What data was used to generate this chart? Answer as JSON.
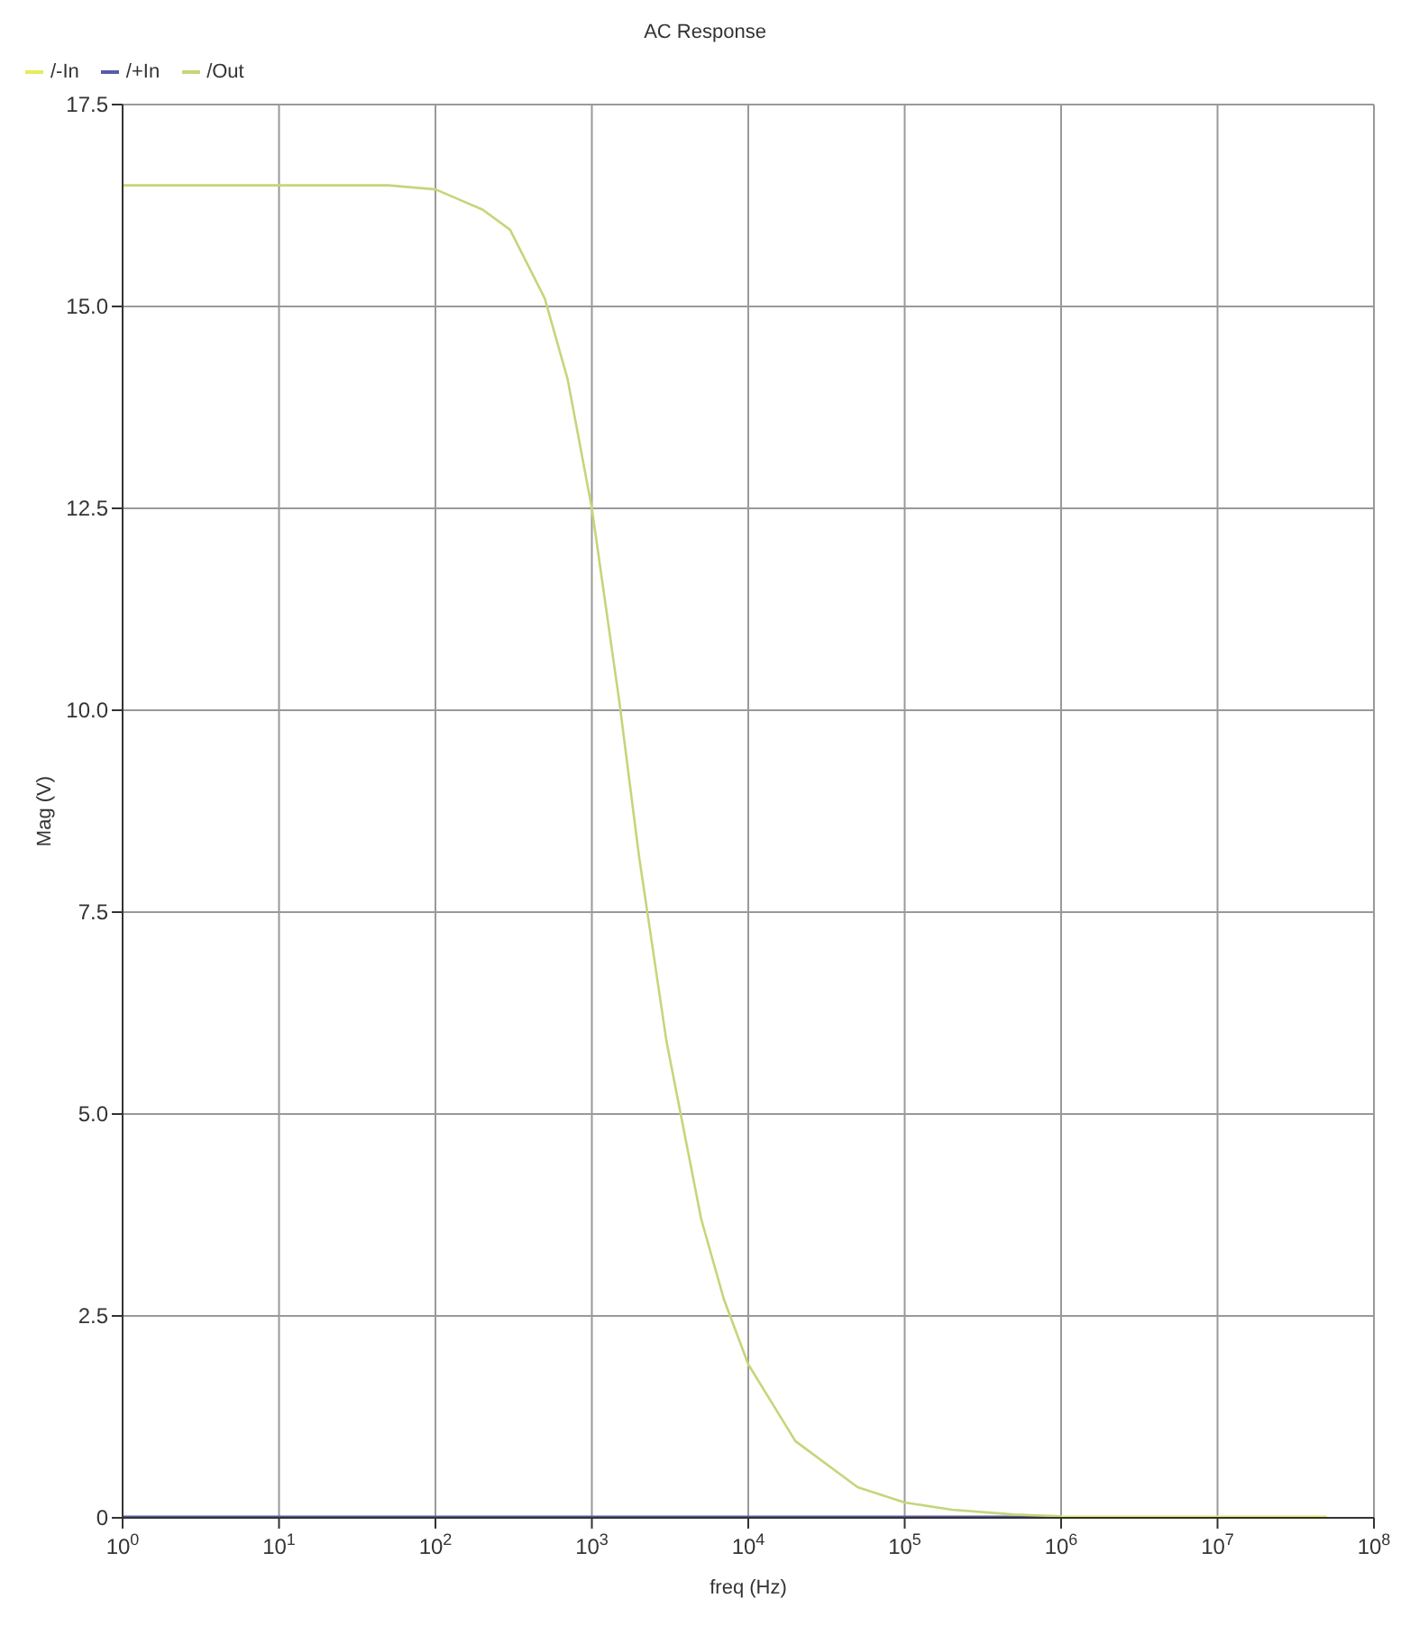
{
  "chart_data": {
    "type": "line",
    "title": "AC Response",
    "xlabel": "freq (Hz)",
    "ylabel": "Mag (V)",
    "log": "x",
    "xlim": [
      1,
      100000000
    ],
    "xticks": [
      {
        "value": 1,
        "label": "10$^{0}$"
      },
      {
        "value": 10,
        "label": "10$^{1}$"
      },
      {
        "value": 100,
        "label": "10$^{2}$"
      },
      {
        "value": 1000,
        "label": "10$^{3}$"
      },
      {
        "value": 10000,
        "label": "10$^{4}$"
      },
      {
        "value": 100000,
        "label": "10$^{5}$"
      },
      {
        "value": 1000000,
        "label": "10$^{6}$"
      },
      {
        "value": 10000000,
        "label": "10$^{7}$"
      },
      {
        "value": 100000000,
        "label": "10$^{8}$"
      }
    ],
    "ylim": [
      0,
      17.5
    ],
    "yticks": [
      0,
      2.5,
      {
        "value": 5,
        "label": "5.0"
      },
      7.5,
      {
        "value": 10,
        "label": "10.0"
      },
      12.5,
      {
        "value": 15,
        "label": "15.0"
      },
      17.5
    ],
    "grid": true,
    "legend": "top left",
    "marker": "none",
    "line_style": "solid",
    "series": [
      {
        "name": "/-In",
        "color": "#e6ec5a",
        "x": [
          1000000,
          50000000
        ],
        "values": [
          0,
          0
        ]
      },
      {
        "name": "/+In",
        "color": "#5a5aa8",
        "x": [
          1,
          1000000
        ],
        "values": [
          0,
          0
        ]
      },
      {
        "name": "/Out",
        "color": "#c4d67a",
        "x": [
          1,
          10,
          50,
          100,
          200,
          300,
          500,
          700,
          1000,
          1500,
          2000,
          3000,
          5000,
          7000,
          10000,
          20000,
          50000,
          100000,
          200000,
          500000,
          1000000
        ],
        "values": [
          16.5,
          16.5,
          16.5,
          16.45,
          16.2,
          15.95,
          15.1,
          14.1,
          12.5,
          10.1,
          8.2,
          5.9,
          3.7,
          2.7,
          1.9,
          0.95,
          0.38,
          0.19,
          0.1,
          0.04,
          0.02
        ]
      }
    ]
  }
}
